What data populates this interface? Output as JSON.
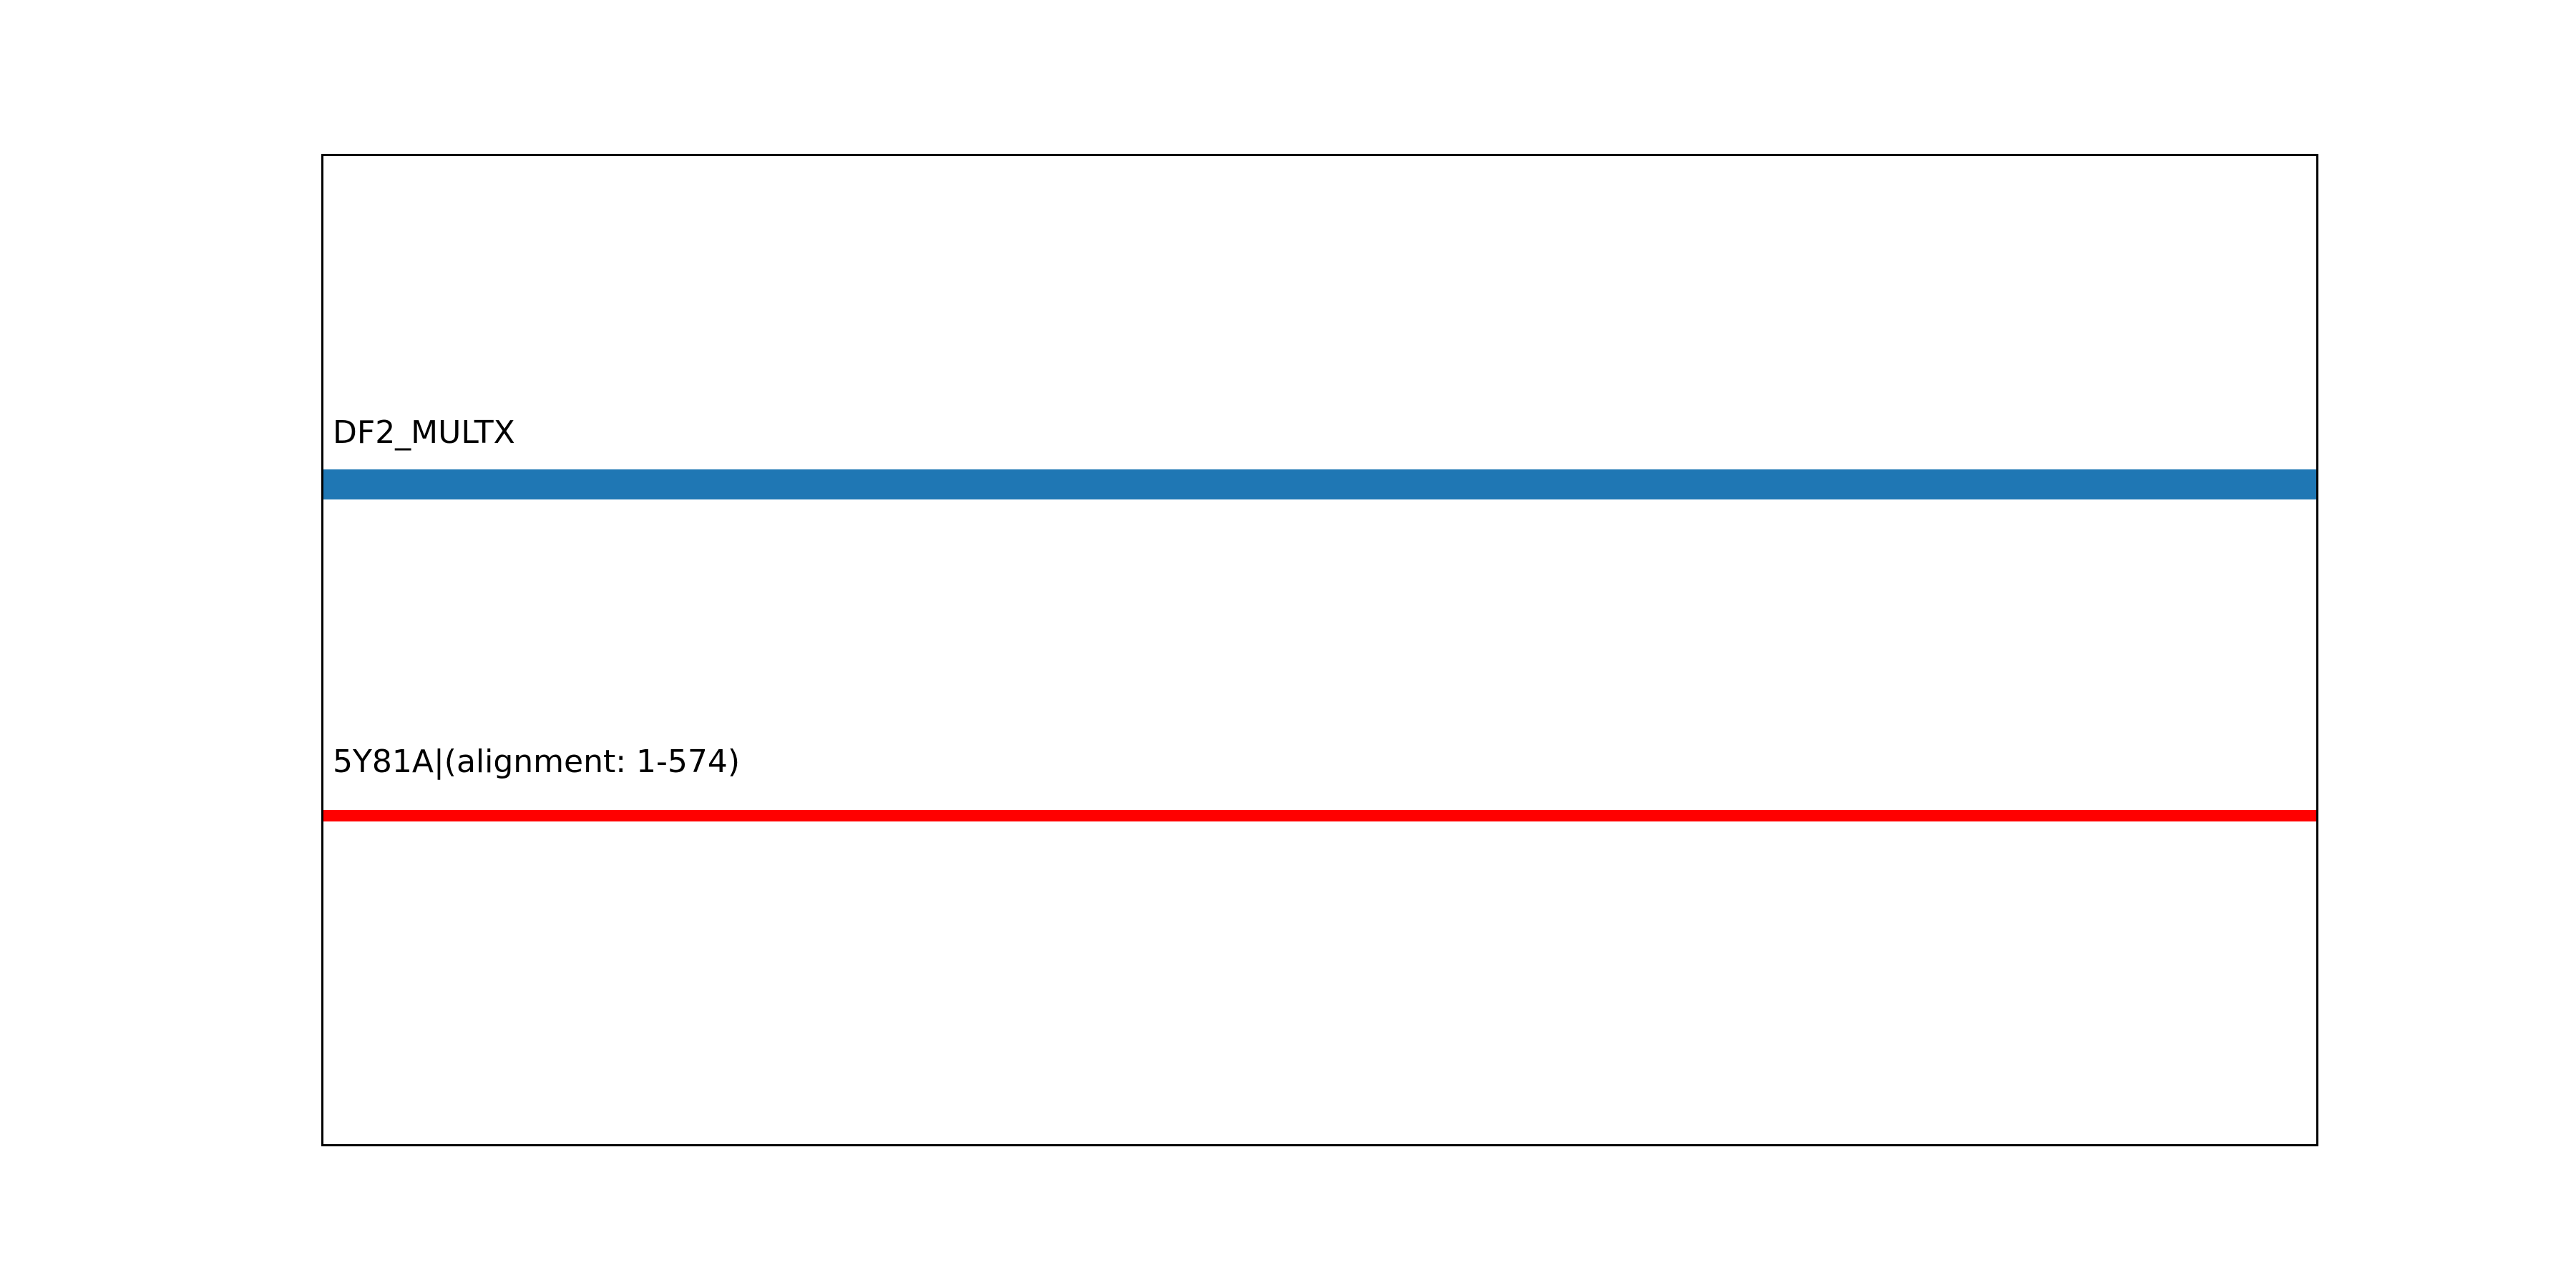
{
  "figure": {
    "background_color": "#ffffff",
    "frame_color": "#000000",
    "text_color": "#000000"
  },
  "tracks": [
    {
      "label": "DF2_MULTX",
      "kind": "bar",
      "color": "#1f77b4"
    },
    {
      "label": "5Y81A|(alignment: 1-574)",
      "kind": "line",
      "color": "#ff0000"
    }
  ],
  "chart_data": {
    "type": "bar",
    "subtype": "horizontal-alignment-tracks",
    "title": "",
    "xlabel": "",
    "ylabel": "",
    "grid": false,
    "frame": true,
    "x_ticks": [],
    "y_ticks": [],
    "alignment_range": {
      "start": 1,
      "end": 574
    },
    "tracks": [
      {
        "label": "DF2_MULTX",
        "kind": "bar",
        "color": "#1f77b4",
        "start": 1,
        "end": 574,
        "row_fraction_from_top": 0.333,
        "spans_full_width": true
      },
      {
        "label": "5Y81A|(alignment: 1-574)",
        "kind": "line",
        "color": "#ff0000",
        "start": 1,
        "end": 574,
        "row_fraction_from_top": 0.666,
        "spans_full_width": true
      }
    ]
  }
}
